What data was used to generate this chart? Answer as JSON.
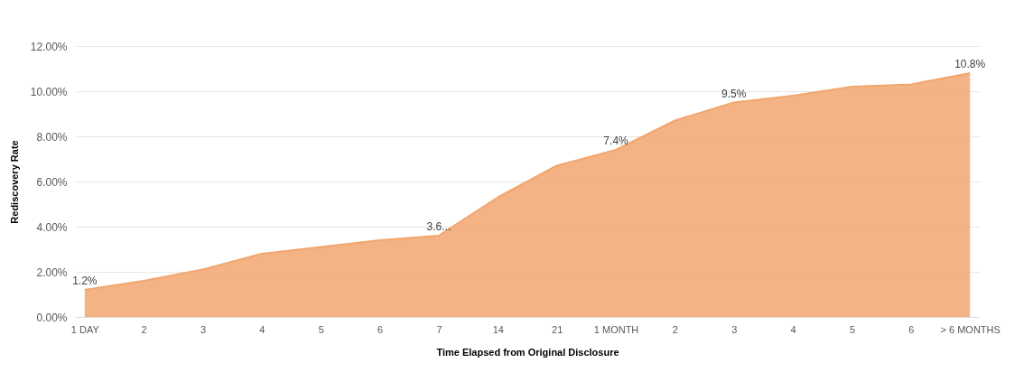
{
  "chart_data": {
    "type": "area",
    "xlabel": "Time Elapsed from Original Disclosure",
    "ylabel": "Rediscovery Rate",
    "categories": [
      "1 DAY",
      "2",
      "3",
      "4",
      "5",
      "6",
      "7",
      "14",
      "21",
      "1 MONTH",
      "2",
      "3",
      "4",
      "5",
      "6",
      "> 6 MONTHS"
    ],
    "series": [
      {
        "color": "#f2a66e",
        "values": [
          1.2,
          1.6,
          2.1,
          2.8,
          3.1,
          3.4,
          3.6,
          5.3,
          6.7,
          7.4,
          8.7,
          9.5,
          9.8,
          10.2,
          10.3,
          10.8
        ],
        "value_labels": [
          "1.2%",
          null,
          null,
          null,
          null,
          null,
          "3.6...",
          null,
          null,
          "7.4%",
          null,
          "9.5%",
          null,
          null,
          null,
          "10.8%"
        ]
      }
    ],
    "ylim": [
      0,
      12
    ],
    "yticks": [
      {
        "value": 0,
        "label": "0.00%"
      },
      {
        "value": 2,
        "label": "2.00%"
      },
      {
        "value": 4,
        "label": "4.00%"
      },
      {
        "value": 6,
        "label": "6.00%"
      },
      {
        "value": 8,
        "label": "8.00%"
      },
      {
        "value": 10,
        "label": "10.00%"
      },
      {
        "value": 12,
        "label": "12.00%"
      }
    ],
    "grid": "y"
  }
}
